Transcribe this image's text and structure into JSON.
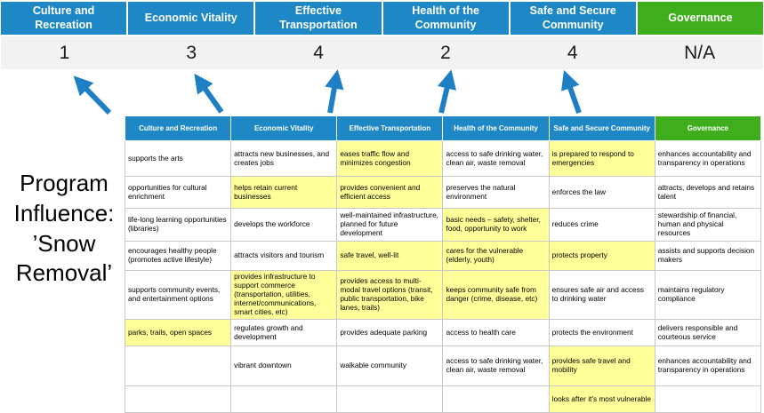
{
  "program_influence": {
    "text": "Program Influence: ’Snow Removal’"
  },
  "colors": {
    "header_blue": "#1E87C5",
    "header_green": "#3FAE1C",
    "arrow_blue": "#1F7FC4",
    "score_band_bg": "#F2F2F2",
    "highlight_yellow": "#FFFF99"
  },
  "scoreboard": {
    "columns": [
      {
        "label": "Culture and Recreation",
        "score": "1",
        "type": "blue"
      },
      {
        "label": "Economic Vitality",
        "score": "3",
        "type": "blue"
      },
      {
        "label": "Effective Transportation",
        "score": "4",
        "type": "blue"
      },
      {
        "label": "Health of the Community",
        "score": "2",
        "type": "blue"
      },
      {
        "label": "Safe and Secure Community",
        "score": "4",
        "type": "blue"
      },
      {
        "label": "Governance",
        "score": "N/A",
        "type": "green"
      }
    ]
  },
  "matrix": {
    "headers": [
      {
        "label": "Culture and Recreation",
        "type": "blue"
      },
      {
        "label": "Economic Vitality",
        "type": "blue"
      },
      {
        "label": "Effective Transportation",
        "type": "blue"
      },
      {
        "label": "Health of the Community",
        "type": "blue"
      },
      {
        "label": "Safe and Secure Community",
        "type": "blue"
      },
      {
        "label": "Governance",
        "type": "green"
      }
    ],
    "rows": [
      {
        "cells": [
          {
            "text": "supports the arts",
            "hl": false
          },
          {
            "text": "attracts new businesses, and creates jobs",
            "hl": false
          },
          {
            "text": "eases traffic flow and minimizes congestion",
            "hl": true
          },
          {
            "text": "access to safe drinking water, clean air, waste removal",
            "hl": false
          },
          {
            "text": "is prepared to respond to emergencies",
            "hl": true
          },
          {
            "text": "enhances accountability and transparency in operations",
            "hl": false
          }
        ]
      },
      {
        "cells": [
          {
            "text": "opportunities for cultural enrichment",
            "hl": false
          },
          {
            "text": "helps retain current businesses",
            "hl": true
          },
          {
            "text": "provides convenient and efficient access",
            "hl": true
          },
          {
            "text": "preserves the natural environment",
            "hl": false
          },
          {
            "text": "enforces the law",
            "hl": false
          },
          {
            "text": "attracts, develops and retains talent",
            "hl": false
          }
        ]
      },
      {
        "cells": [
          {
            "text": "life-long learning opportunities (libraries)",
            "hl": false
          },
          {
            "text": "develops the workforce",
            "hl": false
          },
          {
            "text": "well-maintained infrastructure, planned for future development",
            "hl": false
          },
          {
            "text": "basic needs – safety, shelter, food, opportunity to work",
            "hl": true
          },
          {
            "text": "reduces crime",
            "hl": false
          },
          {
            "text": "stewardship of financial, human and physical resources",
            "hl": false
          }
        ]
      },
      {
        "cells": [
          {
            "text": "encourages healthy people (promotes active lifestyle)",
            "hl": false
          },
          {
            "text": "attracts visitors and tourism",
            "hl": false
          },
          {
            "text": "safe travel, well-lit",
            "hl": true
          },
          {
            "text": "cares for the vulnerable (elderly, youth)",
            "hl": true
          },
          {
            "text": "protects property",
            "hl": true
          },
          {
            "text": "assists and supports decision makers",
            "hl": false
          }
        ]
      },
      {
        "cells": [
          {
            "text": "supports community events, and entertainment options",
            "hl": false
          },
          {
            "text": "provides infrastructure to support commerce (transportation, utilities, internet/communications, smart cities, etc)",
            "hl": true
          },
          {
            "text": "provides access to multi-modal travel options (transit, public transportation, bike lanes, trails)",
            "hl": true
          },
          {
            "text": "keeps community safe from danger (crime, disease, etc)",
            "hl": true
          },
          {
            "text": "ensures safe air and access to drinking water",
            "hl": false
          },
          {
            "text": "maintains regulatory compliance",
            "hl": false
          }
        ]
      },
      {
        "cells": [
          {
            "text": "parks, trails, open spaces",
            "hl": true
          },
          {
            "text": "regulates growth and development",
            "hl": false
          },
          {
            "text": "provides adequate parking",
            "hl": false
          },
          {
            "text": "access to health care",
            "hl": false
          },
          {
            "text": "protects the environment",
            "hl": false
          },
          {
            "text": "delivers responsible and courteous service",
            "hl": false
          }
        ]
      },
      {
        "cells": [
          {
            "text": "",
            "hl": false
          },
          {
            "text": "vibrant downtown",
            "hl": false
          },
          {
            "text": "walkable community",
            "hl": false
          },
          {
            "text": "access to safe drinking water, clean air, waste removal",
            "hl": false
          },
          {
            "text": "provides safe travel and mobility",
            "hl": true
          },
          {
            "text": "enhances accountability and transparency in operations",
            "hl": false
          }
        ]
      },
      {
        "cells": [
          {
            "text": "",
            "hl": false
          },
          {
            "text": "",
            "hl": false
          },
          {
            "text": "",
            "hl": false
          },
          {
            "text": "",
            "hl": false
          },
          {
            "text": "looks after it's most vulnerable",
            "hl": true
          },
          {
            "text": "",
            "hl": false
          }
        ]
      }
    ]
  }
}
